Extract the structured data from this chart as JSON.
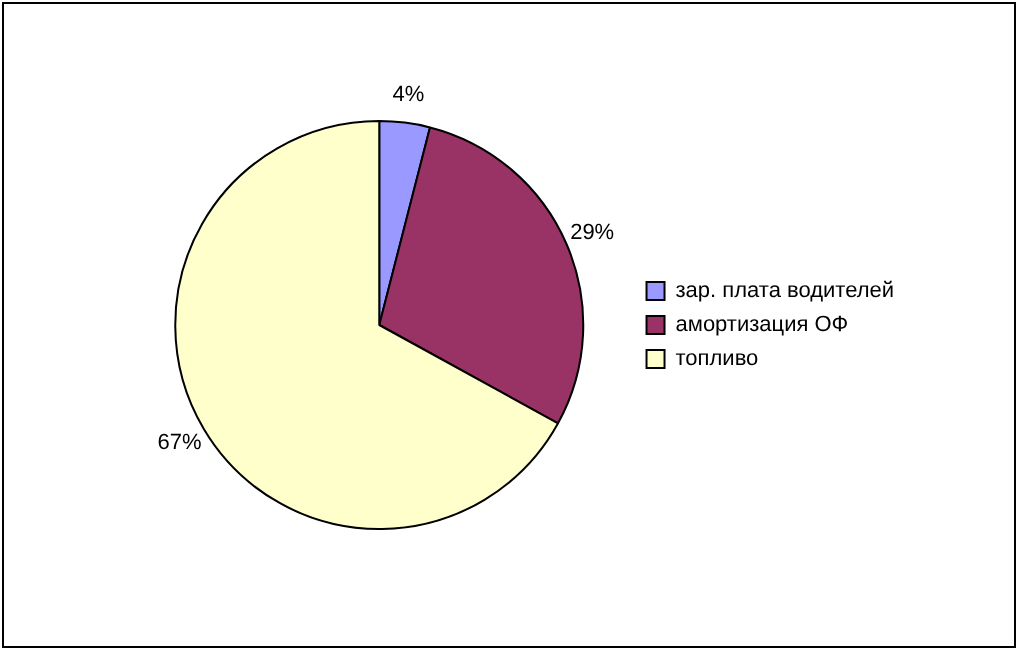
{
  "chart_data": {
    "type": "pie",
    "categories": [
      "зар. плата водителей",
      "амортизация ОФ",
      "топливо"
    ],
    "values": [
      4,
      29,
      67
    ],
    "colors": [
      "#9999ff",
      "#993366",
      "#ffffcc"
    ],
    "value_labels": [
      "4%",
      "29%",
      "67%"
    ],
    "legend": "right"
  }
}
